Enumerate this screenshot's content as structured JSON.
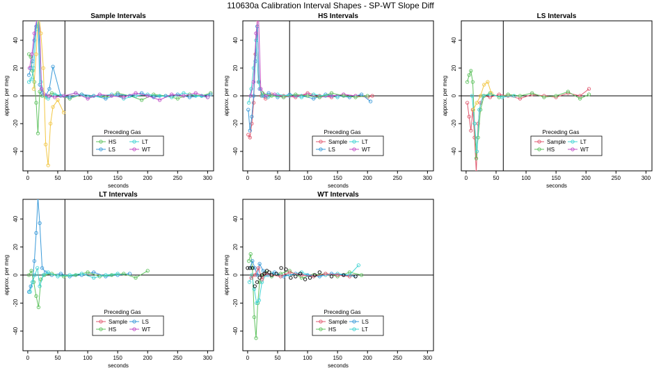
{
  "title": "110630a   Calibration Interval Shapes - SP-WT Slope Diff",
  "colors": {
    "Sample": "#e05a70",
    "HS": "#5fc25f",
    "LS": "#3a9ad9",
    "LT": "#3fd3d3",
    "WT": "#c04cc6",
    "extra": "#f2c744",
    "black": "#000000"
  },
  "legend_title": "Preceding Gas",
  "chart_data": [
    {
      "type": "scatter",
      "title": "Sample Intervals",
      "xlabel": "seconds",
      "ylabel": "approx. per meg",
      "xlim": [
        -8,
        310
      ],
      "ylim": [
        -54,
        54
      ],
      "xticks": [
        0,
        50,
        100,
        150,
        200,
        250,
        300
      ],
      "yticks": [
        -40,
        -20,
        0,
        20,
        40
      ],
      "vline": 62,
      "hline": 0,
      "legend_position": "bottom-center",
      "legend": [
        "HS",
        "LT",
        "LS",
        "WT"
      ],
      "series": [
        {
          "name": "HS",
          "x": [
            2,
            5,
            8,
            11,
            14,
            17,
            20,
            24,
            30,
            40,
            55,
            70,
            90,
            110,
            130,
            150,
            170,
            190,
            210,
            230,
            250,
            270,
            290,
            305
          ],
          "y": [
            30,
            28,
            18,
            10,
            -5,
            -27,
            3,
            0,
            -1,
            2,
            0,
            -2,
            1,
            0,
            -1,
            2,
            0,
            -3,
            1,
            0,
            -2,
            1,
            0,
            2
          ]
        },
        {
          "name": "LS",
          "x": [
            2,
            5,
            8,
            11,
            14,
            17,
            20,
            24,
            30,
            36,
            42,
            55,
            70,
            90,
            110,
            130,
            150,
            170,
            190,
            210,
            230,
            250,
            270,
            290,
            305
          ],
          "y": [
            15,
            20,
            25,
            40,
            50,
            60,
            8,
            2,
            0,
            5,
            21,
            0,
            -1,
            1,
            0,
            -2,
            1,
            0,
            2,
            -1,
            0,
            1,
            -1,
            0,
            1
          ]
        },
        {
          "name": "LT",
          "x": [
            2,
            6,
            10,
            14,
            18,
            22,
            28,
            34,
            45,
            60,
            80,
            100,
            120,
            140,
            160,
            180,
            200,
            220,
            240,
            260,
            280,
            300
          ],
          "y": [
            10,
            12,
            20,
            48,
            55,
            10,
            0,
            -2,
            1,
            0,
            2,
            -1,
            0,
            1,
            -2,
            0,
            1,
            0,
            -1,
            2,
            0,
            -1
          ]
        },
        {
          "name": "WT",
          "x": [
            3,
            7,
            11,
            15,
            19,
            23,
            28,
            35,
            45,
            60,
            80,
            100,
            120,
            140,
            160,
            180,
            200,
            220,
            240,
            260,
            280,
            300
          ],
          "y": [
            20,
            30,
            45,
            55,
            60,
            5,
            1,
            0,
            -1,
            0,
            2,
            -2,
            1,
            0,
            -1,
            2,
            0,
            -3,
            1,
            0,
            2,
            -1
          ]
        },
        {
          "name": "extra",
          "x": [
            10,
            14,
            18,
            22,
            26,
            30,
            34,
            38,
            42,
            50,
            60
          ],
          "y": [
            5,
            30,
            60,
            45,
            20,
            -35,
            -50,
            -20,
            -8,
            -3,
            -12
          ]
        }
      ]
    },
    {
      "type": "scatter",
      "title": "HS Intervals",
      "xlabel": "seconds",
      "ylabel": "approx. per meg",
      "xlim": [
        -8,
        310
      ],
      "ylim": [
        -54,
        54
      ],
      "xticks": [
        0,
        50,
        100,
        150,
        200,
        250,
        300
      ],
      "yticks": [
        -40,
        -20,
        0,
        20,
        40
      ],
      "vline": 70,
      "hline": 0,
      "legend_position": "bottom-center",
      "legend": [
        "Sample",
        "LT",
        "LS",
        "WT"
      ],
      "series": [
        {
          "name": "Sample",
          "x": [
            1,
            4,
            7,
            10,
            13,
            16,
            19,
            23,
            30,
            40,
            60,
            80,
            100,
            120,
            140,
            160,
            180,
            200,
            208
          ],
          "y": [
            -28,
            -30,
            -20,
            -5,
            30,
            55,
            10,
            0,
            -2,
            1,
            0,
            -1,
            2,
            0,
            -1,
            1,
            0,
            -1,
            0
          ]
        },
        {
          "name": "LS",
          "x": [
            1,
            4,
            7,
            10,
            13,
            16,
            20,
            26,
            35,
            50,
            70,
            90,
            110,
            130,
            150,
            170,
            190,
            205
          ],
          "y": [
            -10,
            -25,
            -15,
            0,
            25,
            50,
            5,
            0,
            2,
            -1,
            1,
            0,
            -2,
            1,
            0,
            -1,
            1,
            -4
          ]
        },
        {
          "name": "LT",
          "x": [
            2,
            6,
            10,
            14,
            18,
            24,
            34,
            50,
            70,
            90,
            110,
            130,
            150
          ],
          "y": [
            -5,
            5,
            20,
            40,
            10,
            0,
            -1,
            1,
            0,
            -1,
            1,
            0,
            -1
          ]
        },
        {
          "name": "WT",
          "x": [
            5,
            10,
            14,
            18,
            22,
            30,
            45,
            60,
            80,
            100,
            120,
            140,
            160,
            180
          ],
          "y": [
            0,
            10,
            45,
            60,
            5,
            0,
            1,
            -1,
            0,
            1,
            -1,
            0,
            1,
            0
          ]
        },
        {
          "name": "HS",
          "x": [
            25,
            40,
            60,
            80,
            100,
            120,
            140,
            160,
            180,
            200
          ],
          "y": [
            2,
            0,
            -1,
            1,
            0,
            -1,
            2,
            0,
            -1,
            0
          ]
        }
      ]
    },
    {
      "type": "scatter",
      "title": "LS Intervals",
      "xlabel": "seconds",
      "ylabel": "approx. per meg",
      "xlim": [
        -8,
        310
      ],
      "ylim": [
        -54,
        54
      ],
      "xticks": [
        0,
        50,
        100,
        150,
        200,
        250,
        300
      ],
      "yticks": [
        -40,
        -20,
        0,
        20,
        40
      ],
      "vline": 62,
      "hline": 0,
      "legend_position": "bottom-center",
      "legend": [
        "Sample",
        "LT",
        "HS",
        "WT"
      ],
      "series": [
        {
          "name": "Sample",
          "x": [
            2,
            5,
            8,
            11,
            14,
            17,
            20,
            24,
            30,
            40,
            55,
            70,
            90,
            110,
            130,
            150,
            170,
            190,
            205
          ],
          "y": [
            -5,
            -15,
            -25,
            -10,
            -30,
            -55,
            -20,
            -5,
            0,
            -1,
            1,
            0,
            -2,
            1,
            0,
            -1,
            2,
            0,
            5
          ]
        },
        {
          "name": "HS",
          "x": [
            2,
            5,
            8,
            11,
            14,
            17,
            20,
            24,
            30,
            40,
            55,
            70,
            90,
            110,
            130,
            150,
            170,
            190,
            205
          ],
          "y": [
            10,
            15,
            18,
            10,
            -20,
            -45,
            -30,
            -10,
            0,
            2,
            -1,
            1,
            0,
            2,
            -1,
            0,
            3,
            -2,
            1
          ]
        },
        {
          "name": "LT",
          "x": [
            10,
            14,
            18,
            22,
            28,
            40,
            60,
            80
          ],
          "y": [
            0,
            -20,
            -40,
            -10,
            0,
            1,
            -1,
            0
          ]
        },
        {
          "name": "extra",
          "x": [
            12,
            18,
            24,
            30,
            36,
            42
          ],
          "y": [
            -10,
            -5,
            0,
            8,
            10,
            2
          ]
        }
      ]
    },
    {
      "type": "scatter",
      "title": "LT Intervals",
      "xlabel": "seconds",
      "ylabel": "approx. per meg",
      "xlim": [
        -8,
        310
      ],
      "ylim": [
        -54,
        54
      ],
      "xticks": [
        0,
        50,
        100,
        150,
        200,
        250,
        300
      ],
      "yticks": [
        -40,
        -20,
        0,
        20,
        40
      ],
      "vline": 62,
      "hline": 0,
      "legend_position": "bottom-center",
      "legend": [
        "Sample",
        "LS",
        "HS",
        "WT"
      ],
      "series": [
        {
          "name": "LS",
          "x": [
            2,
            5,
            8,
            11,
            14,
            17,
            20,
            24,
            30,
            40,
            55,
            70,
            90,
            110,
            130,
            150,
            170
          ],
          "y": [
            -12,
            -8,
            -5,
            10,
            30,
            55,
            37,
            5,
            2,
            0,
            1,
            -1,
            0,
            2,
            -1,
            0,
            1
          ]
        },
        {
          "name": "HS",
          "x": [
            2,
            6,
            10,
            14,
            18,
            22,
            28,
            40,
            60,
            80,
            100,
            120,
            140,
            160,
            180,
            200
          ],
          "y": [
            0,
            3,
            -5,
            -15,
            -23,
            -3,
            0,
            1,
            -1,
            0,
            2,
            -1,
            0,
            1,
            -2,
            3
          ]
        },
        {
          "name": "LT",
          "x": [
            4,
            8,
            12,
            16,
            20,
            26,
            34,
            50,
            70,
            90,
            110,
            130,
            150
          ],
          "y": [
            -12,
            -5,
            0,
            5,
            -8,
            0,
            2,
            -1,
            0,
            1,
            -2,
            0,
            1
          ]
        }
      ]
    },
    {
      "type": "scatter",
      "title": "WT Intervals",
      "xlabel": "seconds",
      "ylabel": "approx. per meg",
      "xlim": [
        -8,
        310
      ],
      "ylim": [
        -54,
        54
      ],
      "xticks": [
        0,
        50,
        100,
        150,
        200,
        250,
        300
      ],
      "yticks": [
        -40,
        -20,
        0,
        20,
        40
      ],
      "vline": 62,
      "hline": 0,
      "legend_position": "bottom-center",
      "legend": [
        "Sample",
        "LS",
        "HS",
        "LT"
      ],
      "series": [
        {
          "name": "HS",
          "x": [
            2,
            5,
            8,
            11,
            14,
            17,
            20,
            24,
            30,
            40,
            55,
            70,
            90,
            110,
            130,
            150,
            170,
            190
          ],
          "y": [
            10,
            15,
            5,
            -30,
            -45,
            -20,
            -5,
            0,
            2,
            -1,
            1,
            3,
            -2,
            0,
            1,
            -1,
            2,
            0
          ]
        },
        {
          "name": "LT",
          "x": [
            3,
            7,
            11,
            15,
            19,
            24,
            30,
            40,
            55,
            70,
            90,
            110,
            130,
            150,
            170,
            185
          ],
          "y": [
            -5,
            0,
            -10,
            -20,
            -18,
            -5,
            0,
            1,
            -1,
            0,
            2,
            -1,
            0,
            1,
            0,
            7
          ]
        },
        {
          "name": "LS",
          "x": [
            4,
            8,
            12,
            16,
            20,
            26,
            34,
            45,
            60,
            80,
            100,
            120,
            140,
            160,
            180
          ],
          "y": [
            5,
            10,
            5,
            0,
            8,
            3,
            0,
            2,
            -1,
            1,
            0,
            -1,
            1,
            0,
            -1
          ]
        },
        {
          "name": "Sample",
          "x": [
            6,
            12,
            18,
            24,
            30,
            40,
            55,
            70,
            90,
            110,
            130,
            150,
            170
          ],
          "y": [
            -2,
            0,
            5,
            -3,
            1,
            0,
            -1,
            2,
            0,
            -1,
            1,
            0,
            -1
          ]
        },
        {
          "name": "black",
          "x": [
            0,
            4,
            8,
            12,
            16,
            20,
            24,
            28,
            32,
            36,
            40,
            48,
            56,
            64,
            72,
            80,
            88,
            96,
            104,
            112,
            120,
            140,
            160,
            180
          ],
          "y": [
            5,
            5,
            5,
            -8,
            -5,
            -2,
            0,
            1,
            3,
            2,
            0,
            1,
            5,
            4,
            -2,
            -1,
            1,
            -3,
            -2,
            0,
            2,
            -1,
            0,
            -1
          ]
        }
      ]
    }
  ]
}
